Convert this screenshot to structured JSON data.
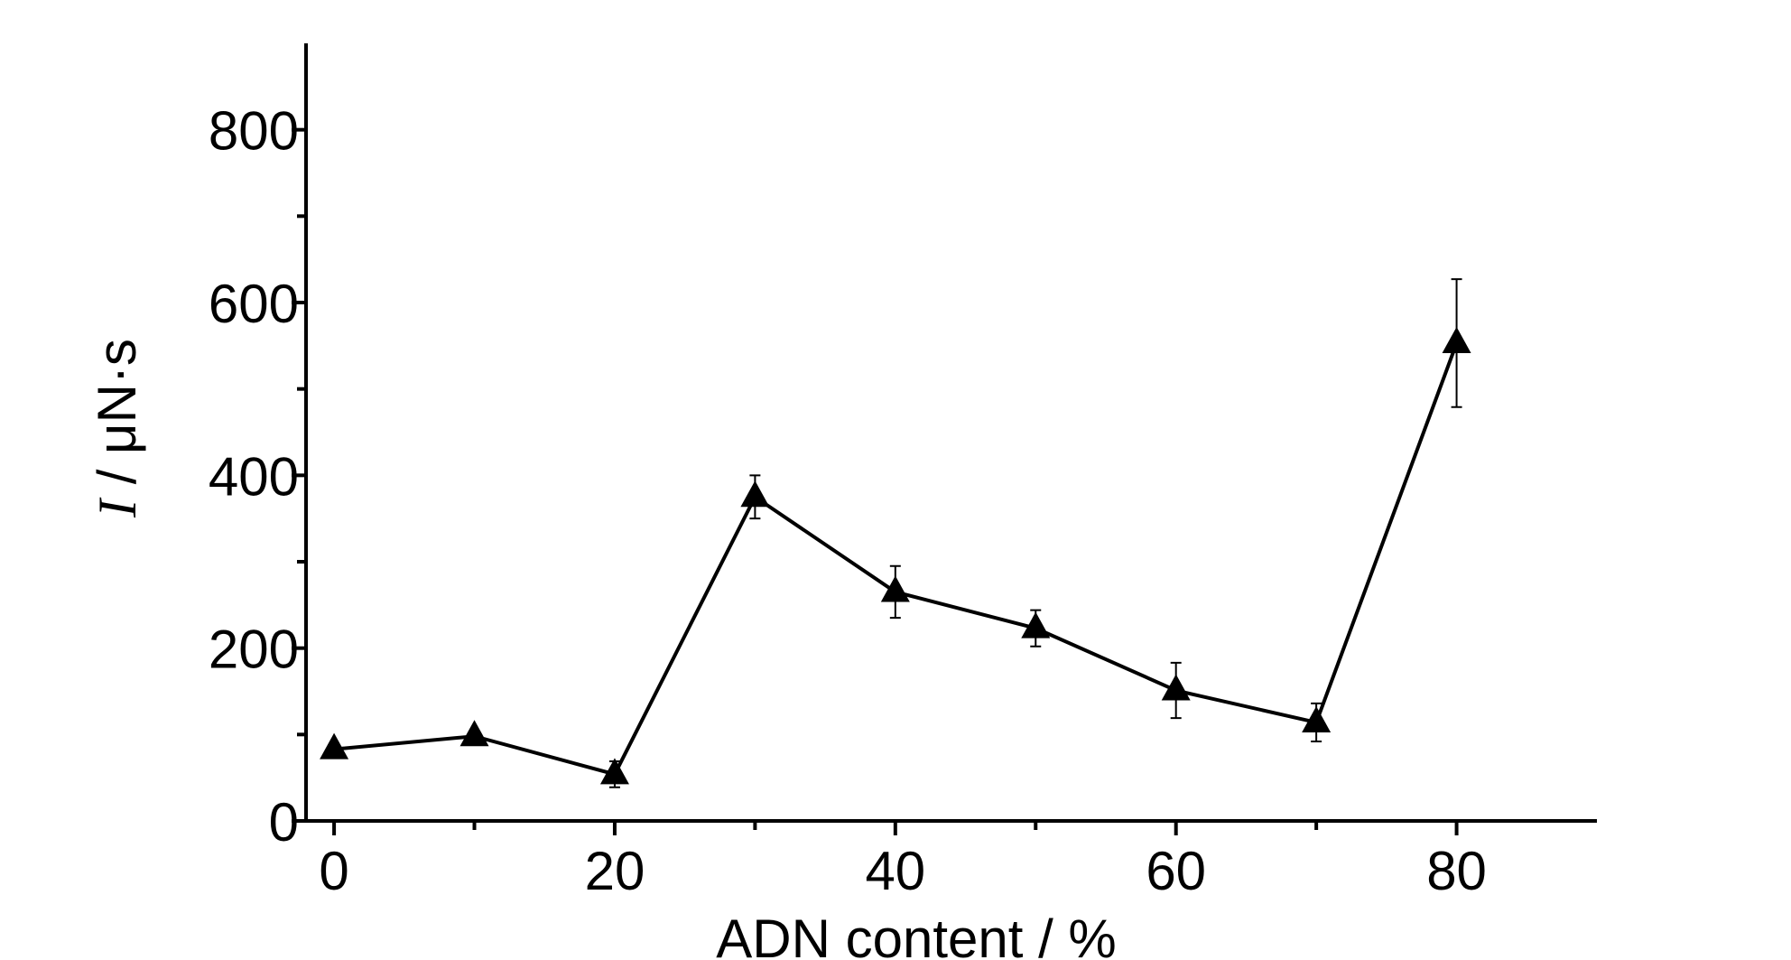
{
  "chart_data": {
    "type": "line",
    "x_label": "ADN content / %",
    "y_label_symbol": "I",
    "y_label_unit": " / μN·s",
    "x": [
      0,
      10,
      20,
      30,
      40,
      50,
      60,
      70,
      80
    ],
    "series": [
      {
        "color": "#000000",
        "values": [
          83,
          98,
          54,
          375,
          265,
          223,
          151,
          114,
          553
        ],
        "errors": [
          5,
          5,
          15,
          25,
          30,
          21,
          32,
          22,
          74
        ]
      }
    ],
    "xlim": [
      -2,
      90
    ],
    "xticks": [
      0,
      20,
      40,
      60,
      80
    ],
    "xminor": [
      10,
      30,
      50,
      70
    ],
    "ylim": [
      0,
      900
    ],
    "yticks": [
      0,
      200,
      400,
      600,
      800
    ],
    "yminor": [
      100,
      300,
      500,
      700
    ],
    "grid": false
  }
}
